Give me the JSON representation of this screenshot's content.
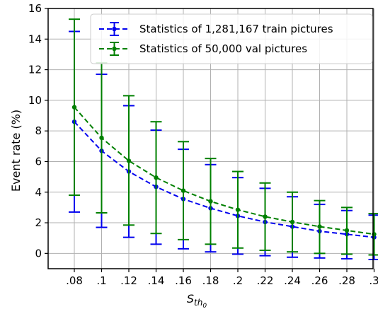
{
  "chart_data": {
    "type": "line",
    "xlabel": "S",
    "xlabel_sub": "th",
    "xlabel_subsub": "0",
    "ylabel": "Event rate (%)",
    "categories": [
      ".08",
      ".1",
      ".12",
      ".14",
      ".16",
      ".18",
      ".2",
      ".22",
      ".24",
      ".26",
      ".28",
      ".3"
    ],
    "ylim": [
      -1,
      16
    ],
    "yticks": [
      "0",
      "2",
      "4",
      "6",
      "8",
      "10",
      "12",
      "14",
      "16"
    ],
    "grid": true,
    "legend_position": "top-right",
    "series": [
      {
        "name": "Statistics of 1,281,167 train pictures",
        "color": "#0000ee",
        "line_style": "dashed",
        "values": [
          8.6,
          6.7,
          5.35,
          4.35,
          3.55,
          2.95,
          2.45,
          2.05,
          1.75,
          1.45,
          1.25,
          1.05
        ],
        "err_low": [
          2.7,
          1.7,
          1.05,
          0.6,
          0.3,
          0.1,
          -0.05,
          -0.15,
          -0.25,
          -0.3,
          -0.35,
          -0.4
        ],
        "err_high": [
          14.5,
          11.7,
          9.65,
          8.05,
          6.8,
          5.8,
          4.95,
          4.25,
          3.7,
          3.2,
          2.8,
          2.5
        ]
      },
      {
        "name": "Statistics of 50,000 val pictures",
        "color": "#008000",
        "line_style": "dashed",
        "values": [
          9.55,
          7.55,
          6.05,
          4.95,
          4.1,
          3.4,
          2.85,
          2.4,
          2.05,
          1.75,
          1.5,
          1.25
        ],
        "err_low": [
          3.8,
          2.65,
          1.85,
          1.3,
          0.9,
          0.6,
          0.35,
          0.2,
          0.1,
          0.0,
          -0.05,
          -0.1
        ],
        "err_high": [
          15.3,
          12.45,
          10.3,
          8.6,
          7.3,
          6.2,
          5.35,
          4.6,
          4.0,
          3.45,
          3.0,
          2.6
        ]
      }
    ]
  }
}
